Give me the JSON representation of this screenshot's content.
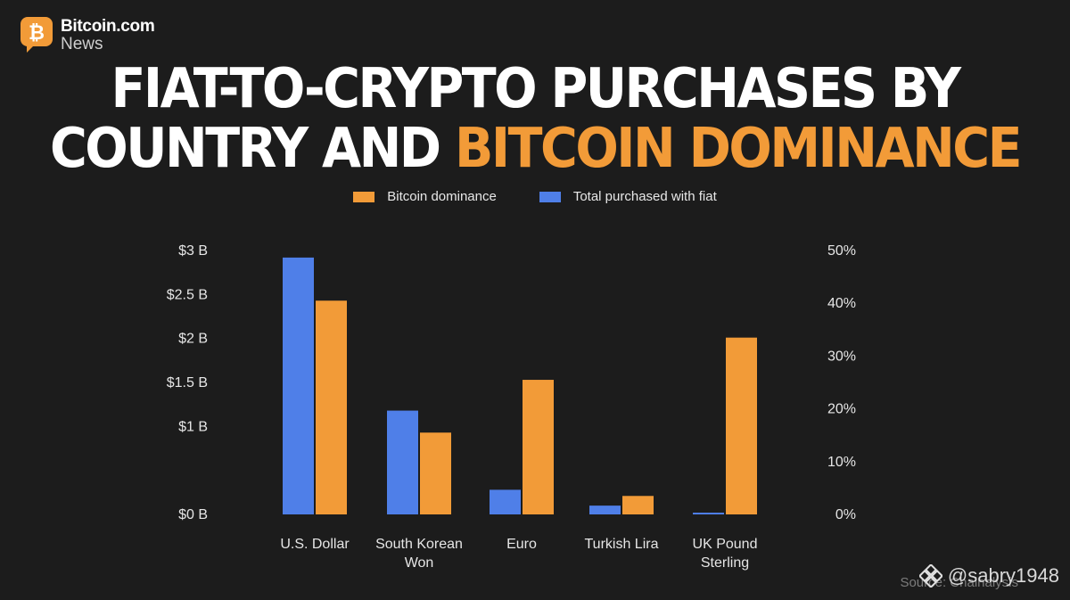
{
  "brand": {
    "name": "Bitcoin.com",
    "sub": "News"
  },
  "title": {
    "line1": "FIAT-TO-CRYPTO PURCHASES BY",
    "line2_plain": "COUNTRY AND",
    "line2_highlight": "BITCOIN DOMINANCE"
  },
  "colors": {
    "background": "#1c1c1c",
    "bitcoin_dominance": "#f29b38",
    "total_fiat": "#4f7fe8"
  },
  "chart_data": {
    "type": "bar",
    "categories": [
      [
        "U.S. Dollar"
      ],
      [
        "South Korean",
        "Won"
      ],
      [
        "Euro"
      ],
      [
        "Turkish Lira"
      ],
      [
        "UK Pound",
        "Sterling"
      ]
    ],
    "series": [
      {
        "name": "Total purchased with fiat",
        "axis": "left",
        "values": [
          2.92,
          1.18,
          0.28,
          0.1,
          0.02
        ]
      },
      {
        "name": "Bitcoin dominance",
        "axis": "right",
        "values": [
          40.5,
          15.5,
          25.5,
          3.5,
          33.5
        ]
      }
    ],
    "legend_order": [
      "Bitcoin dominance",
      "Total purchased with fiat"
    ],
    "y_left": {
      "ticks": [
        "$0 B",
        "$1 B",
        "$1.5 B",
        "$2 B",
        "$2.5 B",
        "$3 B"
      ],
      "tick_values": [
        0,
        1,
        1.5,
        2,
        2.5,
        3
      ]
    },
    "y_right": {
      "ticks": [
        "0%",
        "10%",
        "20%",
        "30%",
        "40%",
        "50%"
      ],
      "tick_values": [
        0,
        10,
        20,
        30,
        40,
        50
      ]
    },
    "legend_position": "top-center",
    "grid": false
  },
  "source": "Source: Chainalysis",
  "watermark": "@sabry1948"
}
